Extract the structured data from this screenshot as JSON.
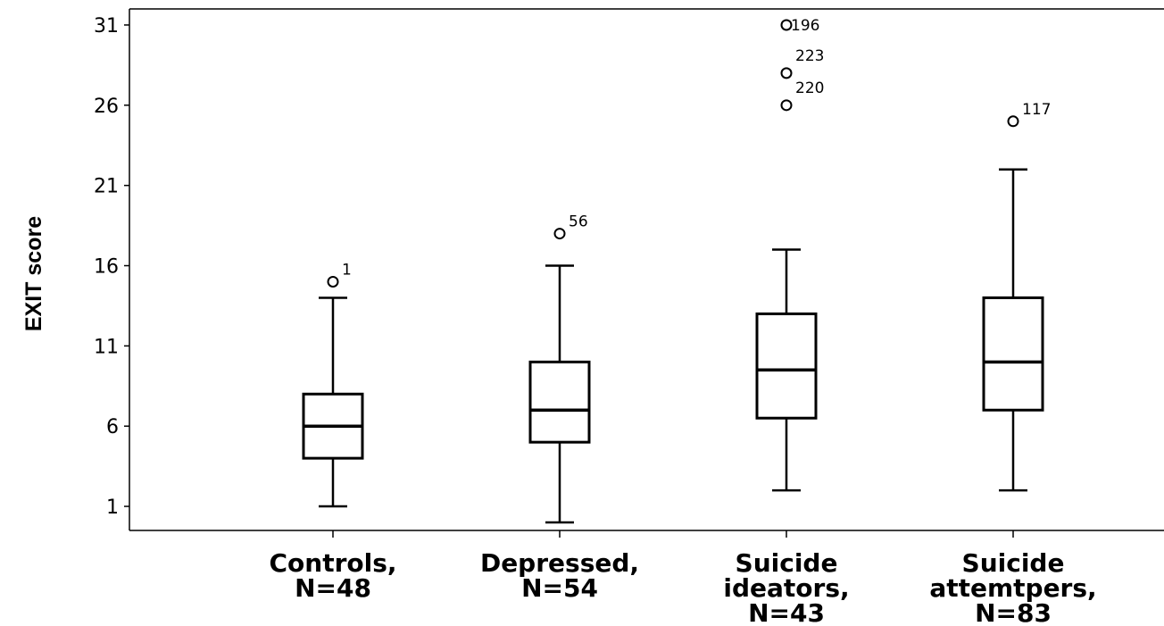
{
  "chart_data": {
    "type": "boxplot",
    "title": "",
    "xlabel": "",
    "ylabel": "EXIT score",
    "ylim": [
      -0.5,
      32
    ],
    "yticks": [
      1,
      6,
      11,
      16,
      21,
      26,
      31
    ],
    "grid": false,
    "categories": [
      {
        "line1": "Controls,",
        "line2": "N=48",
        "line3": ""
      },
      {
        "line1": "Depressed,",
        "line2": "N=54",
        "line3": ""
      },
      {
        "line1": "Suicide",
        "line2": "ideators,",
        "line3": "N=43"
      },
      {
        "line1": "Suicide",
        "line2": "attemtpers,",
        "line3": "N=83"
      }
    ],
    "boxes": [
      {
        "whisker_low": 1,
        "q1": 4,
        "median": 6,
        "q3": 8,
        "whisker_high": 14,
        "outliers": [
          {
            "value": 15,
            "label": "1"
          }
        ]
      },
      {
        "whisker_low": 0,
        "q1": 5,
        "median": 7,
        "q3": 10,
        "whisker_high": 16,
        "outliers": [
          {
            "value": 18,
            "label": "56"
          }
        ]
      },
      {
        "whisker_low": 2,
        "q1": 6.5,
        "median": 9.5,
        "q3": 13,
        "whisker_high": 17,
        "outliers": [
          {
            "value": 31,
            "label": "196"
          },
          {
            "value": 28,
            "label": "223"
          },
          {
            "value": 26,
            "label": "220"
          }
        ]
      },
      {
        "whisker_low": 2,
        "q1": 7,
        "median": 10,
        "q3": 14,
        "whisker_high": 22,
        "outliers": [
          {
            "value": 25,
            "label": "117"
          }
        ]
      }
    ]
  }
}
